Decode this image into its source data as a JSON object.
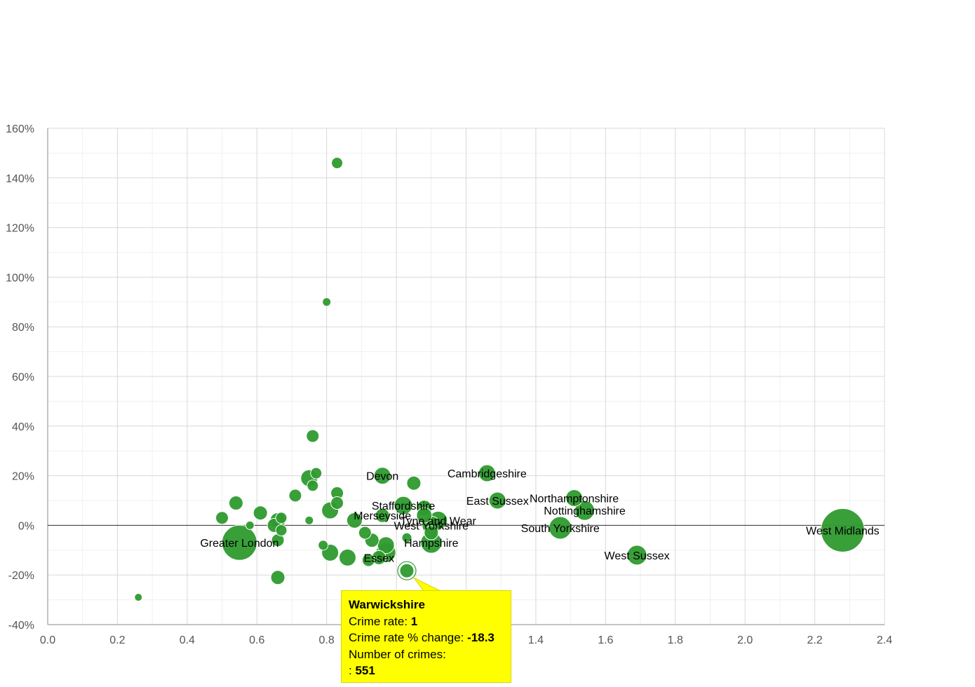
{
  "chart_data": {
    "type": "scatter",
    "xlim": [
      0,
      2.4
    ],
    "ylim": [
      -40,
      160
    ],
    "x_ticks": [
      "0.0",
      "0.2",
      "0.4",
      "0.6",
      "0.8",
      "1.0",
      "1.2",
      "1.4",
      "1.6",
      "1.8",
      "2.0",
      "2.2",
      "2.4"
    ],
    "y_ticks": [
      "160%",
      "140%",
      "120%",
      "100%",
      "80%",
      "60%",
      "40%",
      "20%",
      "0%",
      "-20%",
      "-40%"
    ],
    "points": [
      {
        "x": 0.83,
        "y": 146,
        "s": 8
      },
      {
        "x": 0.8,
        "y": 90,
        "s": 6
      },
      {
        "x": 0.76,
        "y": 36,
        "s": 9
      },
      {
        "x": 0.26,
        "y": -29,
        "s": 5.5
      },
      {
        "x": 0.55,
        "y": -7,
        "s": 25,
        "label": "Greater London"
      },
      {
        "x": 0.5,
        "y": 3,
        "s": 9
      },
      {
        "x": 0.54,
        "y": 9,
        "s": 10
      },
      {
        "x": 0.58,
        "y": 0,
        "s": 6
      },
      {
        "x": 0.61,
        "y": 5,
        "s": 10
      },
      {
        "x": 0.65,
        "y": 0,
        "s": 10
      },
      {
        "x": 0.66,
        "y": 2,
        "s": 11
      },
      {
        "x": 0.67,
        "y": 3,
        "s": 8
      },
      {
        "x": 0.67,
        "y": -2,
        "s": 8
      },
      {
        "x": 0.66,
        "y": -6,
        "s": 9
      },
      {
        "x": 0.66,
        "y": -21,
        "s": 10
      },
      {
        "x": 0.71,
        "y": 12,
        "s": 9
      },
      {
        "x": 0.75,
        "y": 2,
        "s": 6
      },
      {
        "x": 0.75,
        "y": 19,
        "s": 12
      },
      {
        "x": 0.76,
        "y": 16,
        "s": 8
      },
      {
        "x": 0.77,
        "y": 21,
        "s": 8
      },
      {
        "x": 0.79,
        "y": -8,
        "s": 7
      },
      {
        "x": 0.81,
        "y": -11,
        "s": 12
      },
      {
        "x": 0.81,
        "y": 6,
        "s": 12
      },
      {
        "x": 0.83,
        "y": 13,
        "s": 9
      },
      {
        "x": 0.83,
        "y": 9,
        "s": 9
      },
      {
        "x": 0.86,
        "y": -13,
        "s": 12
      },
      {
        "x": 0.88,
        "y": 2,
        "s": 11
      },
      {
        "x": 0.91,
        "y": -3,
        "s": 9
      },
      {
        "x": 0.93,
        "y": -6,
        "s": 10
      },
      {
        "x": 0.92,
        "y": -14,
        "s": 9
      },
      {
        "x": 0.96,
        "y": 4,
        "s": 10,
        "label": "Merseyside"
      },
      {
        "x": 0.95,
        "y": -13,
        "s": 10,
        "label": "Essex"
      },
      {
        "x": 0.97,
        "y": -11,
        "s": 14
      },
      {
        "x": 0.97,
        "y": -8,
        "s": 12
      },
      {
        "x": 0.96,
        "y": 20,
        "s": 12,
        "label": "Devon"
      },
      {
        "x": 1.03,
        "y": -18.3,
        "s": 10
      },
      {
        "x": 1.03,
        "y": -5,
        "s": 7
      },
      {
        "x": 1.02,
        "y": 8,
        "s": 13,
        "label": "Staffordshire"
      },
      {
        "x": 1.05,
        "y": 17,
        "s": 10
      },
      {
        "x": 1.08,
        "y": 7,
        "s": 11
      },
      {
        "x": 1.08,
        "y": 4,
        "s": 11
      },
      {
        "x": 1.12,
        "y": 2,
        "s": 13,
        "label": "Tyne and Wear"
      },
      {
        "x": 1.1,
        "y": 0,
        "s": 13,
        "label": "West Yorkshire"
      },
      {
        "x": 1.1,
        "y": -3,
        "s": 10
      },
      {
        "x": 1.1,
        "y": -7,
        "s": 15,
        "label": "Hampshire"
      },
      {
        "x": 1.26,
        "y": 21,
        "s": 12,
        "label": "Cambridgeshire"
      },
      {
        "x": 1.29,
        "y": 10,
        "s": 12,
        "label": "East Sussex"
      },
      {
        "x": 1.51,
        "y": 11,
        "s": 12,
        "label": "Northamptonshire"
      },
      {
        "x": 1.54,
        "y": 6,
        "s": 14,
        "label": "Nottinghamshire"
      },
      {
        "x": 1.47,
        "y": -1,
        "s": 16,
        "label": "South Yorkshire"
      },
      {
        "x": 1.69,
        "y": -12,
        "s": 14,
        "label": "West Sussex"
      },
      {
        "x": 2.28,
        "y": -2,
        "s": 31,
        "label": "West Midlands"
      }
    ]
  },
  "tooltip": {
    "name": "Warwickshire",
    "rate_label": "Crime rate: ",
    "rate_value": "1",
    "change_label": "Crime rate % change: ",
    "change_value": "-18.3",
    "count_label": "Number of crimes:",
    "count_prefix": ": ",
    "count_value": "551"
  }
}
